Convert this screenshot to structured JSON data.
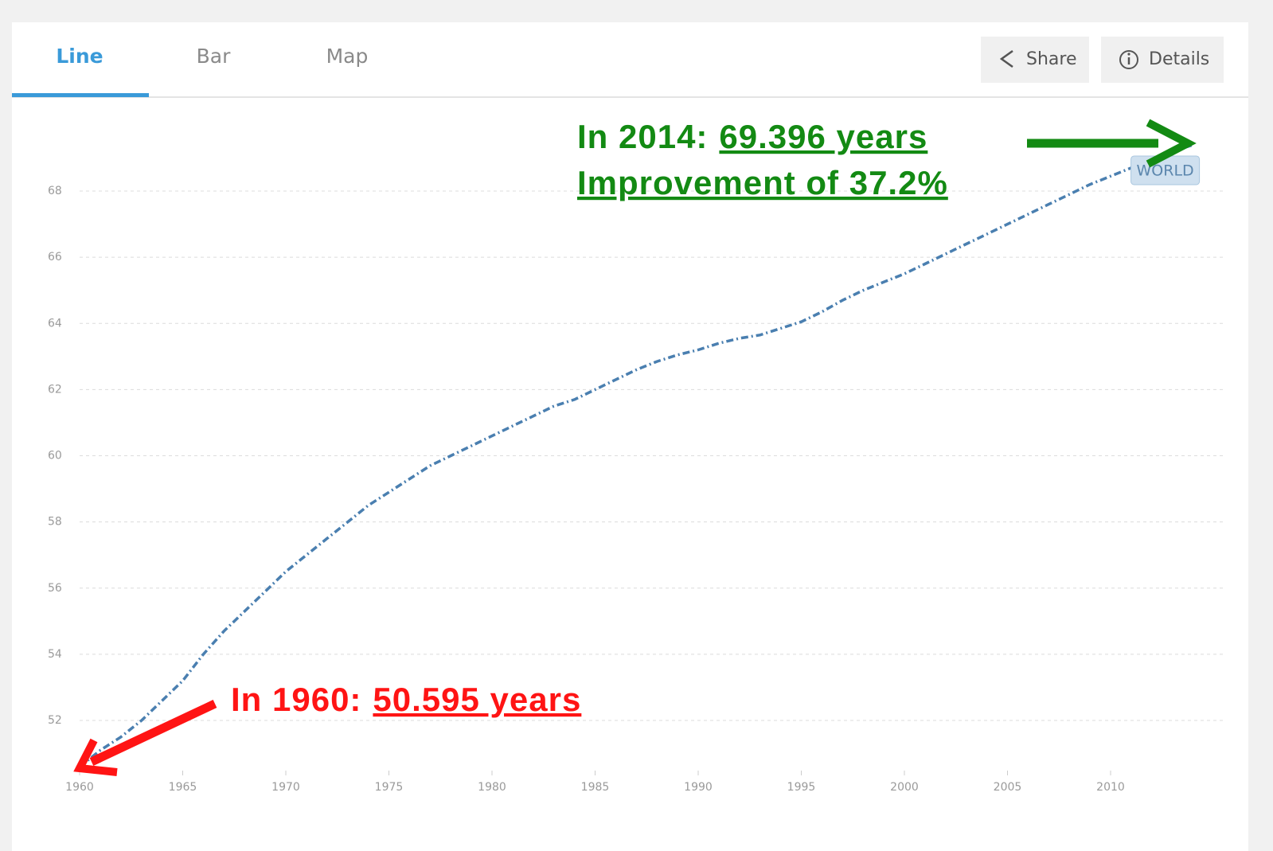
{
  "tabs": [
    "Line",
    "Bar",
    "Map"
  ],
  "buttons": [
    "Share",
    "Details"
  ],
  "chart_data": {
    "type": "line",
    "x": [
      1960,
      1961,
      1962,
      1963,
      1964,
      1965,
      1966,
      1967,
      1968,
      1969,
      1970,
      1971,
      1972,
      1973,
      1974,
      1975,
      1976,
      1977,
      1978,
      1979,
      1980,
      1981,
      1982,
      1983,
      1984,
      1985,
      1986,
      1987,
      1988,
      1989,
      1990,
      1991,
      1992,
      1993,
      1994,
      1995,
      1996,
      1997,
      1998,
      1999,
      2000,
      2001,
      2002,
      2003,
      2004,
      2005,
      2006,
      2007,
      2008,
      2009,
      2010,
      2011,
      2012,
      2013,
      2014
    ],
    "series": [
      {
        "name": "WORLD",
        "color": "#4a7fb0",
        "values": [
          50.595,
          51.1,
          51.5,
          52.0,
          52.6,
          53.2,
          54.0,
          54.7,
          55.3,
          55.9,
          56.5,
          57.0,
          57.5,
          58.0,
          58.5,
          58.9,
          59.3,
          59.7,
          60.0,
          60.3,
          60.6,
          60.9,
          61.2,
          61.5,
          61.7,
          62.0,
          62.3,
          62.6,
          62.85,
          63.05,
          63.2,
          63.4,
          63.55,
          63.65,
          63.85,
          64.05,
          64.35,
          64.7,
          65.0,
          65.25,
          65.5,
          65.8,
          66.1,
          66.4,
          66.7,
          67.0,
          67.3,
          67.6,
          67.9,
          68.2,
          68.45,
          68.7,
          68.95,
          69.2,
          69.396
        ]
      }
    ],
    "xlim": [
      1960,
      2014
    ],
    "ylim": [
      50.5,
      69.8
    ],
    "xticks": [
      1960,
      1965,
      1970,
      1975,
      1980,
      1985,
      1990,
      1995,
      2000,
      2005,
      2010
    ],
    "yticks": [
      52,
      54,
      56,
      58,
      60,
      62,
      64,
      66,
      68
    ],
    "grid": true,
    "annotations": [
      {
        "parts": [
          "In 2014:",
          "69.396 years"
        ],
        "color": "#138a13"
      },
      {
        "parts": [
          "Improvement of 37.2%"
        ],
        "color": "#138a13"
      },
      {
        "parts": [
          "In 1960:",
          "50.595 years"
        ],
        "color": "#ff1414"
      }
    ]
  }
}
